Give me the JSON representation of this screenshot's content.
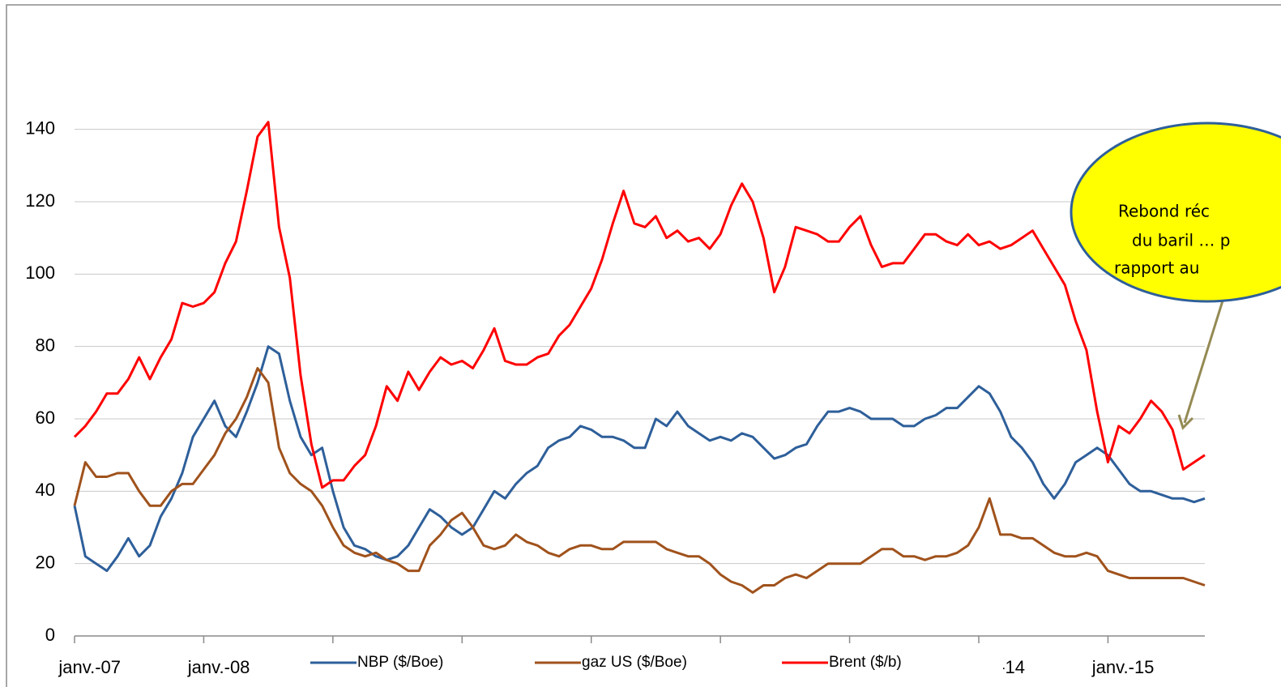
{
  "chart_data": {
    "type": "line",
    "x": [
      "2007-01",
      "2007-02",
      "2007-03",
      "2007-04",
      "2007-05",
      "2007-06",
      "2007-07",
      "2007-08",
      "2007-09",
      "2007-10",
      "2007-11",
      "2007-12",
      "2008-01",
      "2008-02",
      "2008-03",
      "2008-04",
      "2008-05",
      "2008-06",
      "2008-07",
      "2008-08",
      "2008-09",
      "2008-10",
      "2008-11",
      "2008-12",
      "2009-01",
      "2009-02",
      "2009-03",
      "2009-04",
      "2009-05",
      "2009-06",
      "2009-07",
      "2009-08",
      "2009-09",
      "2009-10",
      "2009-11",
      "2009-12",
      "2010-01",
      "2010-02",
      "2010-03",
      "2010-04",
      "2010-05",
      "2010-06",
      "2010-07",
      "2010-08",
      "2010-09",
      "2010-10",
      "2010-11",
      "2010-12",
      "2011-01",
      "2011-02",
      "2011-03",
      "2011-04",
      "2011-05",
      "2011-06",
      "2011-07",
      "2011-08",
      "2011-09",
      "2011-10",
      "2011-11",
      "2011-12",
      "2012-01",
      "2012-02",
      "2012-03",
      "2012-04",
      "2012-05",
      "2012-06",
      "2012-07",
      "2012-08",
      "2012-09",
      "2012-10",
      "2012-11",
      "2012-12",
      "2013-01",
      "2013-02",
      "2013-03",
      "2013-04",
      "2013-05",
      "2013-06",
      "2013-07",
      "2013-08",
      "2013-09",
      "2013-10",
      "2013-11",
      "2013-12",
      "2014-01",
      "2014-02",
      "2014-03",
      "2014-04",
      "2014-05",
      "2014-06",
      "2014-07",
      "2014-08",
      "2014-09",
      "2014-10",
      "2014-11",
      "2014-12",
      "2015-01",
      "2015-02",
      "2015-03",
      "2015-04",
      "2015-05",
      "2015-06",
      "2015-07",
      "2015-08",
      "2015-09",
      "2015-10"
    ],
    "series": [
      {
        "name": "NBP ($/Boe)",
        "color": "#2e5f9a",
        "values": [
          36,
          22,
          20,
          18,
          22,
          27,
          22,
          25,
          33,
          38,
          45,
          55,
          60,
          65,
          58,
          55,
          62,
          70,
          80,
          78,
          65,
          55,
          50,
          52,
          40,
          30,
          25,
          24,
          22,
          21,
          22,
          25,
          30,
          35,
          33,
          30,
          28,
          30,
          35,
          40,
          38,
          42,
          45,
          47,
          52,
          54,
          55,
          58,
          57,
          55,
          55,
          54,
          52,
          52,
          60,
          58,
          62,
          58,
          56,
          54,
          55,
          54,
          56,
          55,
          52,
          49,
          50,
          52,
          53,
          58,
          62,
          62,
          63,
          62,
          60,
          60,
          60,
          58,
          58,
          60,
          61,
          63,
          63,
          66,
          69,
          67,
          62,
          55,
          52,
          48,
          42,
          38,
          42,
          48,
          50,
          52,
          50,
          46,
          42,
          40,
          40,
          39,
          38,
          38,
          37,
          38
        ]
      },
      {
        "name": "gaz US ($/Boe)",
        "color": "#a0521c",
        "values": [
          36,
          48,
          44,
          44,
          45,
          45,
          40,
          36,
          36,
          40,
          42,
          42,
          46,
          50,
          56,
          60,
          66,
          74,
          70,
          52,
          45,
          42,
          40,
          36,
          30,
          25,
          23,
          22,
          23,
          21,
          20,
          18,
          18,
          25,
          28,
          32,
          34,
          30,
          25,
          24,
          25,
          28,
          26,
          25,
          23,
          22,
          24,
          25,
          25,
          24,
          24,
          26,
          26,
          26,
          26,
          24,
          23,
          22,
          22,
          20,
          17,
          15,
          14,
          12,
          14,
          14,
          16,
          17,
          16,
          18,
          20,
          20,
          20,
          20,
          22,
          24,
          24,
          22,
          22,
          21,
          22,
          22,
          23,
          25,
          30,
          38,
          28,
          28,
          27,
          27,
          25,
          23,
          22,
          22,
          23,
          22,
          18,
          17,
          16,
          16,
          16,
          16,
          16,
          16,
          15,
          14
        ]
      },
      {
        "name": "Brent ($/b)",
        "color": "#ff0000",
        "values": [
          55,
          58,
          62,
          67,
          67,
          71,
          77,
          71,
          77,
          82,
          92,
          91,
          92,
          95,
          103,
          109,
          123,
          138,
          142,
          113,
          99,
          72,
          53,
          41,
          43,
          43,
          47,
          50,
          58,
          69,
          65,
          73,
          68,
          73,
          77,
          75,
          76,
          74,
          79,
          85,
          76,
          75,
          75,
          77,
          78,
          83,
          86,
          91,
          96,
          104,
          114,
          123,
          114,
          113,
          116,
          110,
          112,
          109,
          110,
          107,
          111,
          119,
          125,
          120,
          110,
          95,
          102,
          113,
          112,
          111,
          109,
          109,
          113,
          116,
          108,
          102,
          103,
          103,
          107,
          111,
          111,
          109,
          108,
          111,
          108,
          109,
          107,
          108,
          110,
          112,
          107,
          102,
          97,
          87,
          79,
          62,
          48,
          58,
          56,
          60,
          65,
          62,
          57,
          46,
          48,
          50
        ]
      }
    ],
    "xlim": [
      "2007-01",
      "2015-10"
    ],
    "xticks": [
      {
        "value": "2007-01",
        "label": "janv.-07"
      },
      {
        "value": "2008-01",
        "label": "janv.-08"
      },
      {
        "value": "2009-01",
        "label": null
      },
      {
        "value": "2010-01",
        "label": null
      },
      {
        "value": "2011-01",
        "label": null
      },
      {
        "value": "2012-01",
        "label": null
      },
      {
        "value": "2013-01",
        "label": null
      },
      {
        "value": "2014-01",
        "label": "-14"
      },
      {
        "value": "2015-01",
        "label": "janv.-15"
      }
    ],
    "ylim": [
      0,
      150
    ],
    "yticks": [
      0,
      20,
      40,
      60,
      80,
      100,
      120,
      140
    ],
    "grid": true,
    "annotation": {
      "lines": [
        "Rebond réc",
        "du baril … p",
        "rapport au"
      ]
    }
  }
}
